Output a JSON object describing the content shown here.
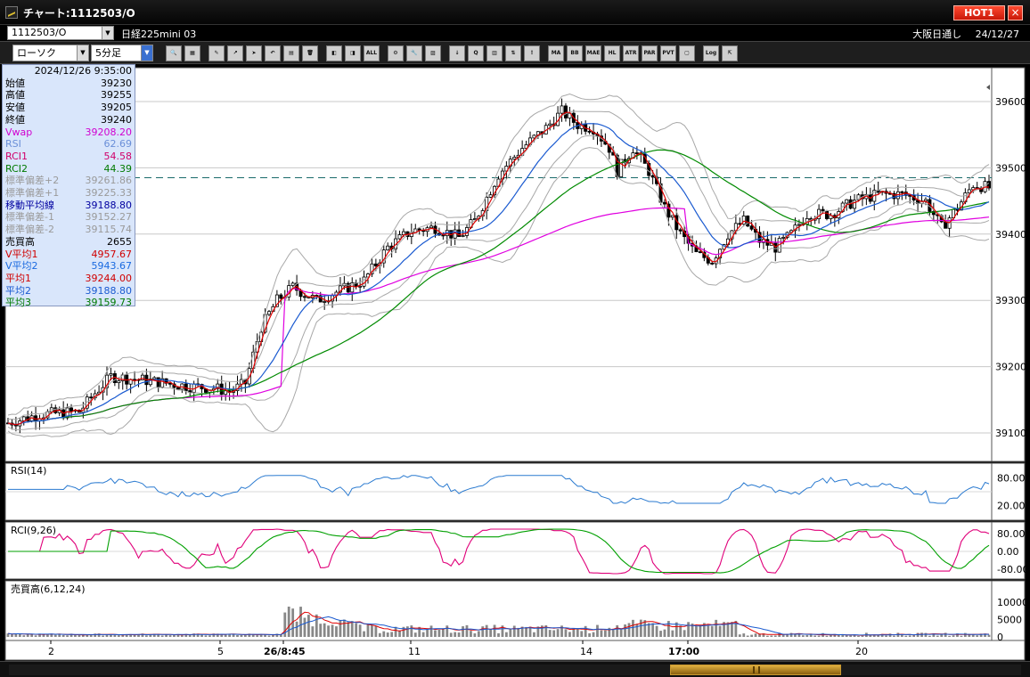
{
  "window": {
    "title": "チャート:1112503/O",
    "hot_label": "HOT1",
    "close_label": "×"
  },
  "symbol": {
    "code": "1112503/O",
    "name": "日経225mini 03",
    "session": "大阪日通し",
    "date": "24/12/27"
  },
  "toolbar": {
    "chart_type": "ローソク",
    "interval": "5分足",
    "icons": [
      {
        "name": "zoom-icon",
        "label": "🔍"
      },
      {
        "name": "grid-icon",
        "label": "▦"
      },
      {
        "name": "pen-icon",
        "label": "✎",
        "gap": true
      },
      {
        "name": "trend-icon",
        "label": "↗"
      },
      {
        "name": "cursor-icon",
        "label": "➤"
      },
      {
        "name": "undo-icon",
        "label": "↶"
      },
      {
        "name": "note-icon",
        "label": "▤"
      },
      {
        "name": "trash-icon",
        "label": "🗑"
      },
      {
        "name": "bar-left-icon",
        "label": "◧",
        "gap": true
      },
      {
        "name": "bar-right-icon",
        "label": "◨"
      },
      {
        "name": "all-icon",
        "label": "ALL"
      },
      {
        "name": "settings-icon",
        "label": "⚙",
        "gap": true
      },
      {
        "name": "tool-icon",
        "label": "🔧"
      },
      {
        "name": "palette-icon",
        "label": "▨"
      },
      {
        "name": "import-icon",
        "label": "↓",
        "gap": true
      },
      {
        "name": "search-data-icon",
        "label": "Q"
      },
      {
        "name": "tick-icon",
        "label": "▥"
      },
      {
        "name": "compare-icon",
        "label": "⇅"
      },
      {
        "name": "info-icon",
        "label": "!"
      },
      {
        "name": "ma-icon",
        "label": "MA",
        "gap": true
      },
      {
        "name": "bb-icon",
        "label": "BB"
      },
      {
        "name": "mae-icon",
        "label": "MAE"
      },
      {
        "name": "hl-icon",
        "label": "HL"
      },
      {
        "name": "atr-icon",
        "label": "ATR"
      },
      {
        "name": "pr-icon",
        "label": "PAR"
      },
      {
        "name": "pvt-icon",
        "label": "PVT"
      },
      {
        "name": "box-icon",
        "label": "▢"
      },
      {
        "name": "log-icon",
        "label": "Log",
        "gap": true
      },
      {
        "name": "export-icon",
        "label": "⇱"
      }
    ]
  },
  "info_panel": {
    "timestamp": "2024/12/26 9:35:00",
    "rows": [
      {
        "label": "始値",
        "value": "39230",
        "color": "#000000"
      },
      {
        "label": "高値",
        "value": "39255",
        "color": "#000000"
      },
      {
        "label": "安値",
        "value": "39205",
        "color": "#000000"
      },
      {
        "label": "終値",
        "value": "39240",
        "color": "#000000"
      },
      {
        "label": "Vwap",
        "value": "39208.20",
        "color": "#d000d0"
      },
      {
        "label": "RSI",
        "value": "62.69",
        "color": "#6a8fd8"
      },
      {
        "label": "RCI1",
        "value": "54.58",
        "color": "#d0006a"
      },
      {
        "label": "RCI2",
        "value": "44.39",
        "color": "#007a00"
      },
      {
        "label": "標準偏差+2",
        "value": "39261.86",
        "color": "#9a9a9a"
      },
      {
        "label": "標準偏差+1",
        "value": "39225.33",
        "color": "#9a9a9a"
      },
      {
        "label": "移動平均線",
        "value": "39188.80",
        "color": "#0000a0"
      },
      {
        "label": "標準偏差-1",
        "value": "39152.27",
        "color": "#9a9a9a"
      },
      {
        "label": "標準偏差-2",
        "value": "39115.74",
        "color": "#9a9a9a"
      },
      {
        "label": "売買高",
        "value": "2655",
        "color": "#000000"
      },
      {
        "label": "V平均1",
        "value": "4957.67",
        "color": "#d00000"
      },
      {
        "label": "V平均2",
        "value": "5943.67",
        "color": "#1a6ae0"
      },
      {
        "label": "平均1",
        "value": "39244.00",
        "color": "#d00000"
      },
      {
        "label": "平均2",
        "value": "39188.80",
        "color": "#1a5ad0"
      },
      {
        "label": "平均3",
        "value": "39159.73",
        "color": "#007a00"
      }
    ]
  },
  "price_axis": {
    "labels": [
      "39600",
      "39500",
      "39400",
      "39300",
      "39200",
      "39100"
    ]
  },
  "panes": {
    "rsi": {
      "title": "RSI(14)",
      "labels": [
        "80.00",
        "20.00"
      ]
    },
    "rci": {
      "title": "RCI(9,26)",
      "labels": [
        "80.00",
        "0.00",
        "-80.00"
      ]
    },
    "volume": {
      "title": "売買高(6,12,24)",
      "labels": [
        "10000",
        "5000",
        "0"
      ]
    }
  },
  "time_axis": {
    "labels": [
      "2",
      "5",
      "26/8:45",
      "11",
      "14",
      "17:00",
      "20"
    ]
  },
  "colors": {
    "background": "#ffffff",
    "candle_up": "#ffffff",
    "candle_down": "#000000",
    "avg1": "#e00000",
    "avg2": "#1a5ad0",
    "avg3": "#008a00",
    "vwap": "#e000e0",
    "bands": "#a8a8a8",
    "rsi": "#2a7ad0",
    "rci1": "#e0007a",
    "rci2": "#00a000",
    "hline": "#1a6a6a"
  }
}
